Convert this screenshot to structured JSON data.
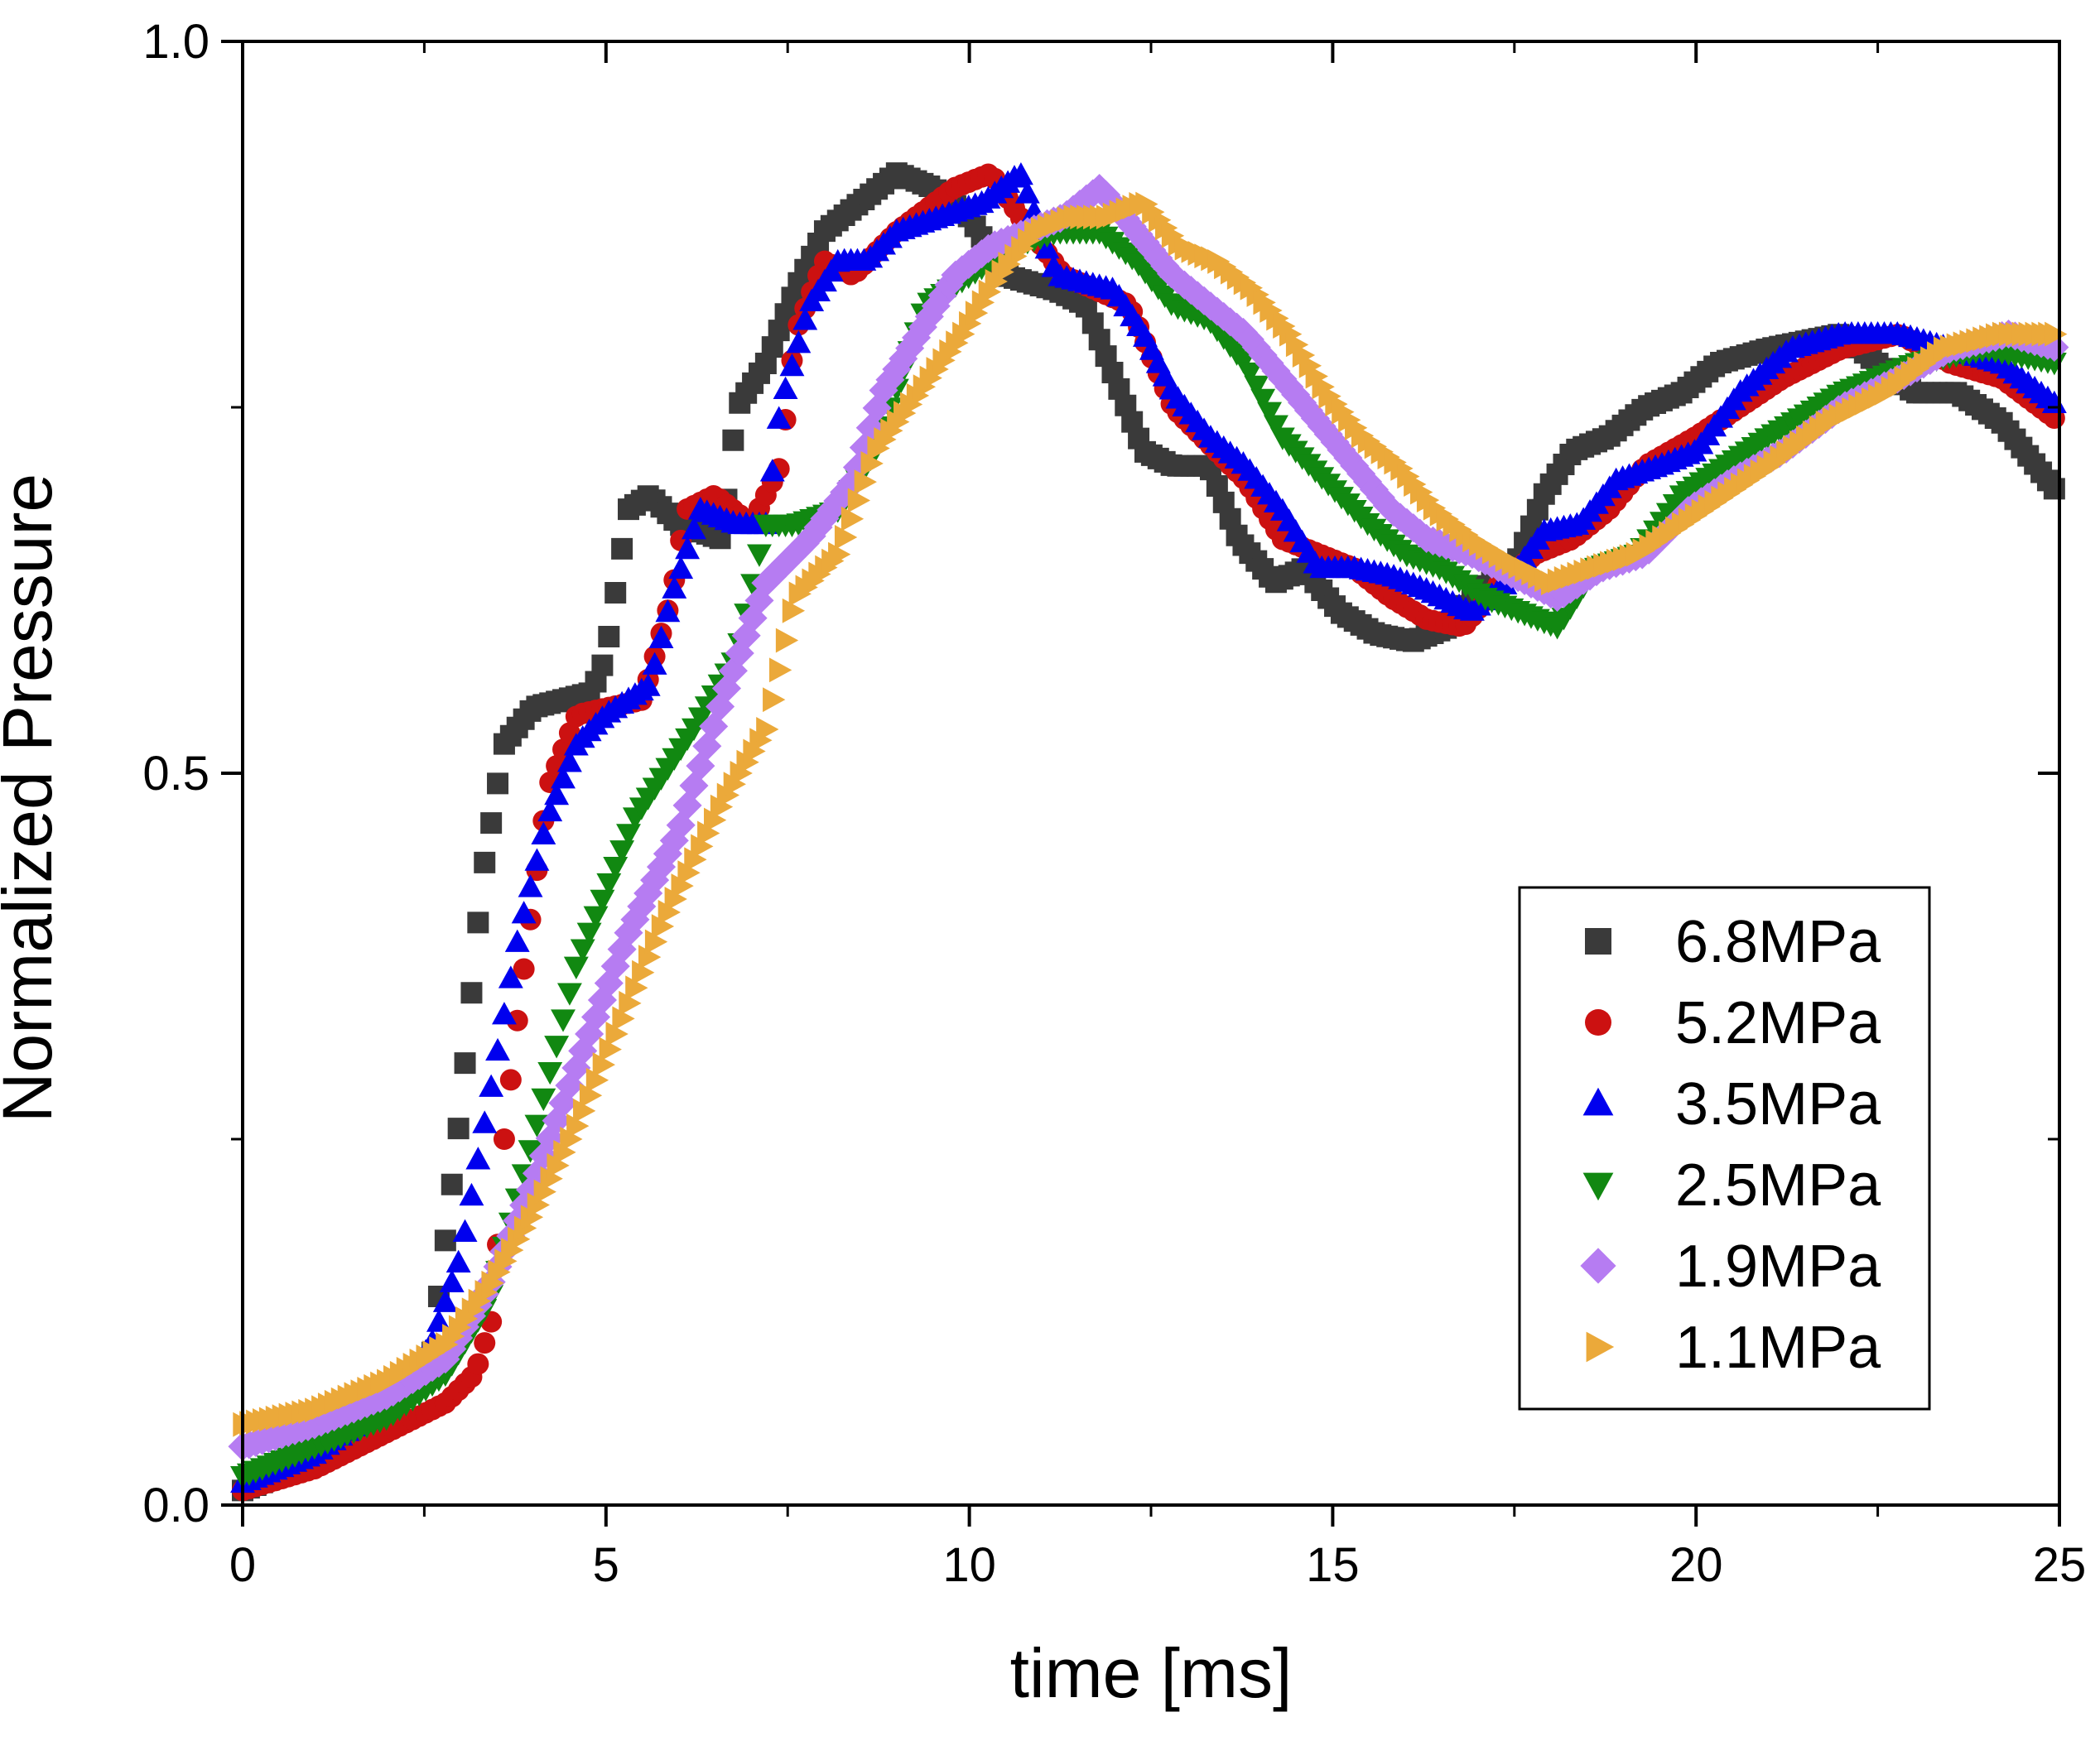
{
  "chart_data": {
    "type": "scatter",
    "xlabel": "time [ms]",
    "ylabel": "Normalized Pressure",
    "xlim": [
      0,
      25
    ],
    "ylim": [
      0,
      1.0
    ],
    "x_ticks": [
      "0",
      "5",
      "10",
      "15",
      "20",
      "25"
    ],
    "y_ticks": [
      "0.0",
      "0.5",
      "1.0"
    ],
    "x_minor_step": 2.5,
    "y_minor_step": 0.25,
    "grid": false,
    "legend_position": "bottom-right",
    "series": [
      {
        "name": "6.8MPa",
        "color": "#3a3a3a",
        "marker": "square",
        "step": 0.09,
        "points": [
          [
            0,
            0.01
          ],
          [
            1,
            0.03
          ],
          [
            2,
            0.06
          ],
          [
            2.6,
            0.1
          ],
          [
            3.0,
            0.27
          ],
          [
            3.3,
            0.43
          ],
          [
            3.6,
            0.52
          ],
          [
            4.0,
            0.545
          ],
          [
            4.8,
            0.555
          ],
          [
            5.0,
            0.58
          ],
          [
            5.3,
            0.68
          ],
          [
            5.6,
            0.69
          ],
          [
            6.0,
            0.67
          ],
          [
            6.6,
            0.66
          ],
          [
            6.8,
            0.75
          ],
          [
            7.2,
            0.78
          ],
          [
            7.6,
            0.83
          ],
          [
            8.0,
            0.87
          ],
          [
            8.5,
            0.89
          ],
          [
            9.0,
            0.91
          ],
          [
            9.5,
            0.9
          ],
          [
            10.0,
            0.88
          ],
          [
            10.5,
            0.84
          ],
          [
            11.2,
            0.83
          ],
          [
            11.6,
            0.82
          ],
          [
            12.0,
            0.77
          ],
          [
            12.4,
            0.72
          ],
          [
            12.8,
            0.71
          ],
          [
            13.3,
            0.71
          ],
          [
            13.7,
            0.66
          ],
          [
            14.2,
            0.63
          ],
          [
            14.6,
            0.64
          ],
          [
            15.1,
            0.61
          ],
          [
            15.6,
            0.595
          ],
          [
            16.1,
            0.59
          ],
          [
            16.6,
            0.6
          ],
          [
            17.0,
            0.625
          ],
          [
            17.5,
            0.64
          ],
          [
            17.9,
            0.69
          ],
          [
            18.3,
            0.72
          ],
          [
            18.8,
            0.73
          ],
          [
            19.3,
            0.75
          ],
          [
            19.8,
            0.76
          ],
          [
            20.3,
            0.78
          ],
          [
            21.0,
            0.79
          ],
          [
            22.0,
            0.8
          ],
          [
            23.0,
            0.76
          ],
          [
            23.6,
            0.76
          ],
          [
            24.2,
            0.74
          ],
          [
            25,
            0.69
          ]
        ]
      },
      {
        "name": "5.2MPa",
        "color": "#cc1111",
        "marker": "circle",
        "step": 0.09,
        "points": [
          [
            0,
            0.01
          ],
          [
            1,
            0.025
          ],
          [
            2,
            0.05
          ],
          [
            2.8,
            0.07
          ],
          [
            3.2,
            0.09
          ],
          [
            3.45,
            0.13
          ],
          [
            3.6,
            0.25
          ],
          [
            3.8,
            0.34
          ],
          [
            4.2,
            0.49
          ],
          [
            4.6,
            0.54
          ],
          [
            5.5,
            0.55
          ],
          [
            5.9,
            0.62
          ],
          [
            6.1,
            0.68
          ],
          [
            6.5,
            0.69
          ],
          [
            7.0,
            0.67
          ],
          [
            7.4,
            0.71
          ],
          [
            7.6,
            0.8
          ],
          [
            8.0,
            0.85
          ],
          [
            8.4,
            0.84
          ],
          [
            9.0,
            0.87
          ],
          [
            9.8,
            0.9
          ],
          [
            10.3,
            0.91
          ],
          [
            10.7,
            0.88
          ],
          [
            11.3,
            0.84
          ],
          [
            12.2,
            0.82
          ],
          [
            12.8,
            0.75
          ],
          [
            13.4,
            0.72
          ],
          [
            13.8,
            0.7
          ],
          [
            14.3,
            0.66
          ],
          [
            14.8,
            0.65
          ],
          [
            15.3,
            0.64
          ],
          [
            15.8,
            0.62
          ],
          [
            16.3,
            0.605
          ],
          [
            16.8,
            0.6
          ],
          [
            17.3,
            0.63
          ],
          [
            17.8,
            0.65
          ],
          [
            18.3,
            0.66
          ],
          [
            18.8,
            0.68
          ],
          [
            19.3,
            0.71
          ],
          [
            20.0,
            0.73
          ],
          [
            20.6,
            0.75
          ],
          [
            21.2,
            0.77
          ],
          [
            22.0,
            0.79
          ],
          [
            22.8,
            0.8
          ],
          [
            23.5,
            0.78
          ],
          [
            24.2,
            0.77
          ],
          [
            25,
            0.74
          ]
        ]
      },
      {
        "name": "3.5MPa",
        "color": "#0000ee",
        "marker": "triangle-up",
        "step": 0.09,
        "points": [
          [
            0,
            0.015
          ],
          [
            1,
            0.035
          ],
          [
            2,
            0.07
          ],
          [
            2.6,
            0.11
          ],
          [
            3.0,
            0.17
          ],
          [
            3.4,
            0.28
          ],
          [
            3.8,
            0.39
          ],
          [
            4.2,
            0.47
          ],
          [
            4.6,
            0.52
          ],
          [
            5.0,
            0.54
          ],
          [
            5.6,
            0.56
          ],
          [
            5.9,
            0.62
          ],
          [
            6.3,
            0.68
          ],
          [
            6.8,
            0.67
          ],
          [
            7.2,
            0.67
          ],
          [
            7.4,
            0.75
          ],
          [
            7.8,
            0.82
          ],
          [
            8.2,
            0.85
          ],
          [
            8.6,
            0.85
          ],
          [
            9.0,
            0.87
          ],
          [
            9.6,
            0.88
          ],
          [
            10.2,
            0.89
          ],
          [
            10.7,
            0.91
          ],
          [
            11.2,
            0.84
          ],
          [
            12.0,
            0.83
          ],
          [
            12.4,
            0.8
          ],
          [
            12.8,
            0.76
          ],
          [
            13.3,
            0.73
          ],
          [
            13.8,
            0.71
          ],
          [
            14.3,
            0.68
          ],
          [
            14.8,
            0.64
          ],
          [
            15.3,
            0.64
          ],
          [
            15.8,
            0.635
          ],
          [
            16.3,
            0.625
          ],
          [
            16.9,
            0.61
          ],
          [
            17.4,
            0.63
          ],
          [
            17.9,
            0.665
          ],
          [
            18.4,
            0.67
          ],
          [
            18.9,
            0.7
          ],
          [
            19.5,
            0.71
          ],
          [
            20.0,
            0.72
          ],
          [
            20.6,
            0.76
          ],
          [
            21.3,
            0.79
          ],
          [
            22.0,
            0.8
          ],
          [
            22.8,
            0.8
          ],
          [
            23.5,
            0.79
          ],
          [
            24.2,
            0.78
          ],
          [
            25,
            0.75
          ]
        ]
      },
      {
        "name": "2.5MPa",
        "color": "#118811",
        "marker": "triangle-down",
        "step": 0.09,
        "points": [
          [
            0,
            0.02
          ],
          [
            1,
            0.04
          ],
          [
            2,
            0.06
          ],
          [
            2.8,
            0.09
          ],
          [
            3.4,
            0.14
          ],
          [
            4.0,
            0.25
          ],
          [
            4.6,
            0.37
          ],
          [
            5.4,
            0.47
          ],
          [
            6.2,
            0.53
          ],
          [
            6.8,
            0.58
          ],
          [
            7.2,
            0.67
          ],
          [
            7.6,
            0.67
          ],
          [
            8.2,
            0.68
          ],
          [
            8.7,
            0.72
          ],
          [
            9.4,
            0.82
          ],
          [
            10.0,
            0.84
          ],
          [
            10.6,
            0.86
          ],
          [
            11.2,
            0.87
          ],
          [
            11.8,
            0.87
          ],
          [
            12.3,
            0.85
          ],
          [
            12.8,
            0.82
          ],
          [
            13.3,
            0.81
          ],
          [
            13.8,
            0.78
          ],
          [
            14.3,
            0.73
          ],
          [
            14.9,
            0.7
          ],
          [
            15.5,
            0.67
          ],
          [
            16.0,
            0.65
          ],
          [
            16.5,
            0.64
          ],
          [
            17.1,
            0.62
          ],
          [
            17.6,
            0.61
          ],
          [
            18.1,
            0.6
          ],
          [
            18.6,
            0.64
          ],
          [
            19.2,
            0.65
          ],
          [
            19.8,
            0.69
          ],
          [
            20.4,
            0.71
          ],
          [
            21.0,
            0.73
          ],
          [
            22.0,
            0.76
          ],
          [
            23.0,
            0.78
          ],
          [
            24.0,
            0.79
          ],
          [
            25,
            0.78
          ]
        ]
      },
      {
        "name": "1.9MPa",
        "color": "#b67cf2",
        "marker": "diamond",
        "step": 0.09,
        "points": [
          [
            0,
            0.04
          ],
          [
            1,
            0.055
          ],
          [
            2,
            0.075
          ],
          [
            2.8,
            0.1
          ],
          [
            3.4,
            0.15
          ],
          [
            4.0,
            0.22
          ],
          [
            4.6,
            0.3
          ],
          [
            5.3,
            0.39
          ],
          [
            6.0,
            0.46
          ],
          [
            6.6,
            0.55
          ],
          [
            7.2,
            0.63
          ],
          [
            7.8,
            0.66
          ],
          [
            8.4,
            0.7
          ],
          [
            8.8,
            0.76
          ],
          [
            9.3,
            0.8
          ],
          [
            9.8,
            0.84
          ],
          [
            10.3,
            0.86
          ],
          [
            10.8,
            0.87
          ],
          [
            11.3,
            0.88
          ],
          [
            11.8,
            0.9
          ],
          [
            12.3,
            0.87
          ],
          [
            12.8,
            0.84
          ],
          [
            13.3,
            0.82
          ],
          [
            13.8,
            0.8
          ],
          [
            14.3,
            0.77
          ],
          [
            14.8,
            0.74
          ],
          [
            15.3,
            0.71
          ],
          [
            15.8,
            0.68
          ],
          [
            16.3,
            0.66
          ],
          [
            16.9,
            0.65
          ],
          [
            17.5,
            0.635
          ],
          [
            18.1,
            0.62
          ],
          [
            18.7,
            0.64
          ],
          [
            19.3,
            0.65
          ],
          [
            19.9,
            0.68
          ],
          [
            20.5,
            0.7
          ],
          [
            21.2,
            0.72
          ],
          [
            22.0,
            0.75
          ],
          [
            22.8,
            0.77
          ],
          [
            23.5,
            0.79
          ],
          [
            24.3,
            0.8
          ],
          [
            25,
            0.79
          ]
        ]
      },
      {
        "name": "1.1MPa",
        "color": "#eba93a",
        "marker": "triangle-right",
        "step": 0.09,
        "points": [
          [
            0,
            0.055
          ],
          [
            1,
            0.065
          ],
          [
            2,
            0.085
          ],
          [
            2.8,
            0.11
          ],
          [
            3.4,
            0.15
          ],
          [
            4.0,
            0.2
          ],
          [
            4.6,
            0.26
          ],
          [
            5.2,
            0.33
          ],
          [
            5.8,
            0.4
          ],
          [
            6.6,
            0.48
          ],
          [
            7.2,
            0.53
          ],
          [
            7.6,
            0.62
          ],
          [
            8.2,
            0.65
          ],
          [
            8.7,
            0.72
          ],
          [
            9.3,
            0.76
          ],
          [
            9.9,
            0.8
          ],
          [
            10.4,
            0.84
          ],
          [
            10.9,
            0.87
          ],
          [
            11.4,
            0.88
          ],
          [
            11.9,
            0.88
          ],
          [
            12.4,
            0.89
          ],
          [
            12.9,
            0.86
          ],
          [
            13.4,
            0.85
          ],
          [
            13.9,
            0.83
          ],
          [
            14.4,
            0.8
          ],
          [
            14.9,
            0.76
          ],
          [
            15.4,
            0.73
          ],
          [
            15.9,
            0.71
          ],
          [
            16.4,
            0.68
          ],
          [
            16.9,
            0.66
          ],
          [
            17.4,
            0.645
          ],
          [
            18.0,
            0.63
          ],
          [
            18.6,
            0.64
          ],
          [
            19.2,
            0.65
          ],
          [
            19.8,
            0.67
          ],
          [
            20.4,
            0.69
          ],
          [
            21.0,
            0.71
          ],
          [
            21.8,
            0.74
          ],
          [
            22.6,
            0.76
          ],
          [
            23.4,
            0.79
          ],
          [
            24.2,
            0.8
          ],
          [
            25,
            0.8
          ]
        ]
      }
    ]
  }
}
